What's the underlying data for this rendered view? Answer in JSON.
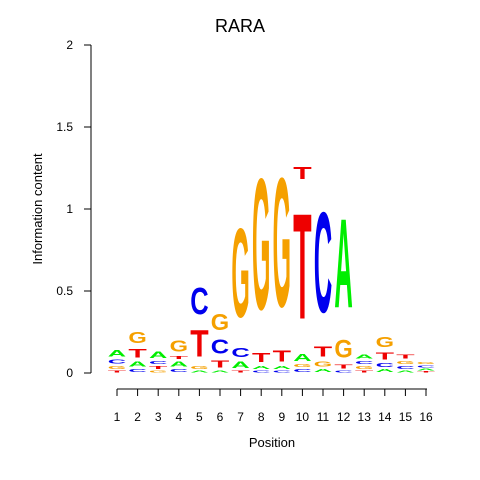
{
  "chart_data": {
    "type": "sequence-logo",
    "title": "RARA",
    "xlabel": "Position",
    "ylabel": "Information content",
    "ylim": [
      0,
      2
    ],
    "yticks": [
      "0",
      "0.5",
      "1",
      "1.5",
      "2"
    ],
    "positions": [
      "1",
      "2",
      "3",
      "4",
      "5",
      "6",
      "7",
      "8",
      "9",
      "10",
      "11",
      "12",
      "13",
      "14",
      "15",
      "16"
    ],
    "colors": {
      "A": "#00ee00",
      "C": "#0000ee",
      "G": "#f5a000",
      "T": "#ee0000"
    },
    "stacks": [
      [
        [
          "T",
          0.02
        ],
        [
          "G",
          0.03
        ],
        [
          "C",
          0.04
        ],
        [
          "A",
          0.06
        ]
      ],
      [
        [
          "C",
          0.03
        ],
        [
          "A",
          0.05
        ],
        [
          "T",
          0.08
        ],
        [
          "G",
          0.11
        ]
      ],
      [
        [
          "G",
          0.02
        ],
        [
          "T",
          0.03
        ],
        [
          "C",
          0.03
        ],
        [
          "A",
          0.06
        ]
      ],
      [
        [
          "C",
          0.03
        ],
        [
          "A",
          0.05
        ],
        [
          "T",
          0.03
        ],
        [
          "G",
          0.11
        ]
      ],
      [
        [
          "A",
          0.02
        ],
        [
          "G",
          0.03
        ],
        [
          "T",
          0.26
        ],
        [
          "C",
          0.26
        ]
      ],
      [
        [
          "A",
          0.02
        ],
        [
          "T",
          0.07
        ],
        [
          "C",
          0.14
        ],
        [
          "G",
          0.16
        ]
      ],
      [
        [
          "T",
          0.02
        ],
        [
          "A",
          0.06
        ],
        [
          "C",
          0.09
        ],
        [
          "G",
          0.87
        ]
      ],
      [
        [
          "C",
          0.02
        ],
        [
          "A",
          0.03
        ],
        [
          "T",
          0.09
        ],
        [
          "G",
          1.28
        ]
      ],
      [
        [
          "C",
          0.02
        ],
        [
          "A",
          0.03
        ],
        [
          "T",
          0.11
        ],
        [
          "G",
          1.26
        ]
      ],
      [
        [
          "C",
          0.03
        ],
        [
          "G",
          0.03
        ],
        [
          "A",
          0.07
        ],
        [
          "T",
          1.03
        ],
        [
          "T",
          0.12
        ]
      ],
      [
        [
          "A",
          0.03
        ],
        [
          "G",
          0.05
        ],
        [
          "T",
          0.1
        ],
        [
          "C",
          0.98
        ]
      ],
      [
        [
          "C",
          0.02
        ],
        [
          "T",
          0.04
        ],
        [
          "G",
          0.17
        ],
        [
          "A",
          0.87
        ]
      ],
      [
        [
          "T",
          0.02
        ],
        [
          "G",
          0.03
        ],
        [
          "C",
          0.03
        ],
        [
          "A",
          0.04
        ]
      ],
      [
        [
          "A",
          0.03
        ],
        [
          "C",
          0.04
        ],
        [
          "T",
          0.07
        ],
        [
          "G",
          0.1
        ]
      ],
      [
        [
          "A",
          0.02
        ],
        [
          "C",
          0.03
        ],
        [
          "G",
          0.03
        ],
        [
          "T",
          0.04
        ]
      ],
      [
        [
          "T",
          0.01
        ],
        [
          "A",
          0.02
        ],
        [
          "C",
          0.02
        ],
        [
          "G",
          0.02
        ]
      ]
    ]
  }
}
